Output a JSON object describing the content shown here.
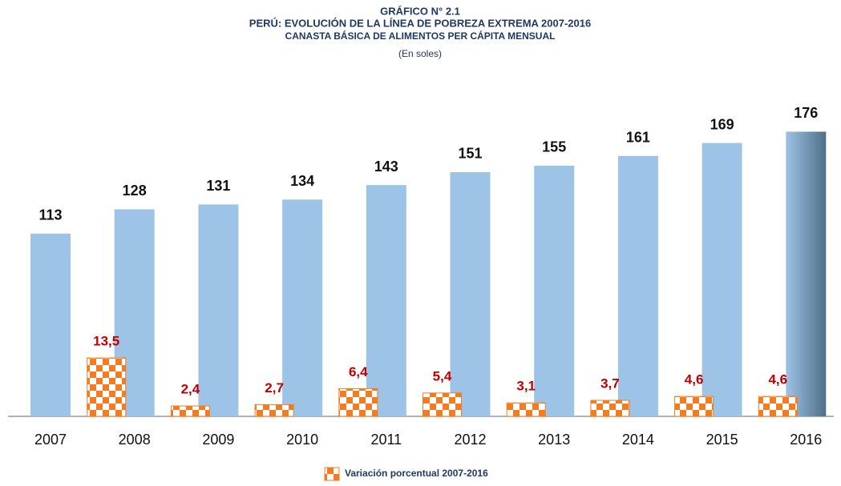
{
  "chart_data": {
    "type": "bar",
    "title_lines": [
      "GRÁFICO N° 2.1",
      "PERÚ: EVOLUCIÓN DE LA LÍNEA DE POBREZA EXTREMA 2007-2016",
      "CANASTA BÁSICA DE ALIMENTOS PER CÁPITA MENSUAL"
    ],
    "unit_note": "(En soles)",
    "categories": [
      "2007",
      "2008",
      "2009",
      "2010",
      "2011",
      "2012",
      "2013",
      "2014",
      "2015",
      "2016"
    ],
    "series": [
      {
        "color": "#9dc3e6",
        "values": [
          113,
          128,
          131,
          134,
          143,
          151,
          155,
          161,
          169,
          176
        ]
      },
      {
        "name": "Variación porcentual 2007-2016",
        "color": "#f47c20",
        "values": [
          null,
          13.5,
          2.4,
          2.7,
          6.4,
          5.4,
          3.1,
          3.7,
          4.6,
          4.6
        ],
        "value_labels": [
          null,
          "13,5",
          "2,4",
          "2,7",
          "6,4",
          "5,4",
          "3,1",
          "3,7",
          "4,6",
          "4,6"
        ]
      }
    ]
  }
}
